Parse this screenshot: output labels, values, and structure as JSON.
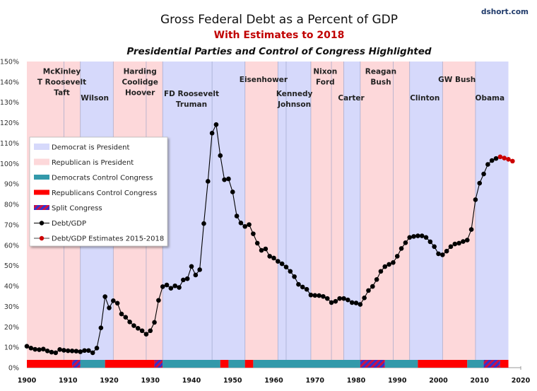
{
  "source_label": "dshort.com",
  "chart_data": {
    "type": "line",
    "title": "Gross Federal Debt as a Percent of GDP",
    "subtitle": "With Estimates to 2018",
    "subtitle2": "Presidential Parties and Control of Congress Highlighted",
    "xlabel": "",
    "ylabel": "",
    "xlim": [
      1900,
      2020
    ],
    "ylim": [
      0,
      150
    ],
    "x_ticks": [
      1900,
      1910,
      1920,
      1930,
      1940,
      1950,
      1960,
      1970,
      1980,
      1990,
      2000,
      2010,
      2020
    ],
    "y_ticks": [
      0,
      10,
      20,
      30,
      40,
      50,
      60,
      70,
      80,
      90,
      100,
      110,
      120,
      130,
      140,
      150
    ],
    "y_tick_suffix": "%",
    "grid": false,
    "legend_position": "left-middle",
    "colors": {
      "democrat_president": "#d6d9fb",
      "republican_president": "#fdd8da",
      "democrats_congress": "#3399aa",
      "republicans_congress": "#ff0000",
      "split_congress_a": "#3333cc",
      "split_congress_b": "#cc1144",
      "debt_line": "#000000",
      "estimate_marker": "#cc0000",
      "term_divider": "#9aa3c8"
    },
    "presidencies": [
      {
        "party": "R",
        "start": 1900,
        "end": 1913,
        "label": [
          "McKinley",
          "T Roosevelt",
          "Taft"
        ],
        "label_x": 1908.5,
        "label_y": 144
      },
      {
        "party": "D",
        "start": 1913,
        "end": 1921,
        "label": [
          "Wilson"
        ],
        "label_x": 1916.5,
        "label_y": 131
      },
      {
        "party": "R",
        "start": 1921,
        "end": 1933,
        "label": [
          "Harding",
          "Coolidge",
          "Hoover"
        ],
        "label_x": 1927.5,
        "label_y": 144
      },
      {
        "party": "D",
        "start": 1933,
        "end": 1953,
        "label": [
          "FD Roosevelt",
          "Truman"
        ],
        "label_x": 1940,
        "label_y": 133
      },
      {
        "party": "R",
        "start": 1953,
        "end": 1961,
        "label": [
          "Eisenhower"
        ],
        "label_x": 1957.5,
        "label_y": 140
      },
      {
        "party": "D",
        "start": 1961,
        "end": 1969,
        "label": [
          "Kennedy",
          "Johnson"
        ],
        "label_x": 1965,
        "label_y": 133
      },
      {
        "party": "R",
        "start": 1969,
        "end": 1977,
        "label": [
          "Nixon",
          "Ford"
        ],
        "label_x": 1972.5,
        "label_y": 144
      },
      {
        "party": "D",
        "start": 1977,
        "end": 1981,
        "label": [
          "Carter"
        ],
        "label_x": 1978.8,
        "label_y": 131
      },
      {
        "party": "R",
        "start": 1981,
        "end": 1993,
        "label": [
          "Reagan",
          "Bush"
        ],
        "label_x": 1986,
        "label_y": 144
      },
      {
        "party": "D",
        "start": 1993,
        "end": 2001,
        "label": [
          "Clinton"
        ],
        "label_x": 1996.7,
        "label_y": 131
      },
      {
        "party": "R",
        "start": 2001,
        "end": 2009,
        "label": [
          "GW Bush"
        ],
        "label_x": 2004.5,
        "label_y": 140
      },
      {
        "party": "D",
        "start": 2009,
        "end": 2017,
        "label": [
          "Obama"
        ],
        "label_x": 2012.5,
        "label_y": 131
      }
    ],
    "term_dividers": [
      1909,
      1913,
      1921,
      1929,
      1933,
      1945,
      1953,
      1961,
      1963,
      1969,
      1974,
      1977,
      1981,
      1989,
      1993,
      2001,
      2009
    ],
    "congress": [
      {
        "control": "R",
        "start": 1900,
        "end": 1911
      },
      {
        "control": "S",
        "start": 1911,
        "end": 1913
      },
      {
        "control": "D",
        "start": 1913,
        "end": 1919
      },
      {
        "control": "R",
        "start": 1919,
        "end": 1931
      },
      {
        "control": "S",
        "start": 1931,
        "end": 1933
      },
      {
        "control": "D",
        "start": 1933,
        "end": 1947
      },
      {
        "control": "R",
        "start": 1947,
        "end": 1949
      },
      {
        "control": "D",
        "start": 1949,
        "end": 1953
      },
      {
        "control": "R",
        "start": 1953,
        "end": 1955
      },
      {
        "control": "D",
        "start": 1955,
        "end": 1981
      },
      {
        "control": "S",
        "start": 1981,
        "end": 1987
      },
      {
        "control": "D",
        "start": 1987,
        "end": 1995
      },
      {
        "control": "R",
        "start": 1995,
        "end": 2007
      },
      {
        "control": "D",
        "start": 2007,
        "end": 2011
      },
      {
        "control": "S",
        "start": 2011,
        "end": 2015
      },
      {
        "control": "R",
        "start": 2015,
        "end": 2017
      }
    ],
    "series": [
      {
        "name": "Debt/GDP",
        "x": [
          1900,
          1901,
          1902,
          1903,
          1904,
          1905,
          1906,
          1907,
          1908,
          1909,
          1910,
          1911,
          1912,
          1913,
          1914,
          1915,
          1916,
          1917,
          1918,
          1919,
          1920,
          1921,
          1922,
          1923,
          1924,
          1925,
          1926,
          1927,
          1928,
          1929,
          1930,
          1931,
          1932,
          1933,
          1934,
          1935,
          1936,
          1937,
          1938,
          1939,
          1940,
          1941,
          1942,
          1943,
          1944,
          1945,
          1946,
          1947,
          1948,
          1949,
          1950,
          1951,
          1952,
          1953,
          1954,
          1955,
          1956,
          1957,
          1958,
          1959,
          1960,
          1961,
          1962,
          1963,
          1964,
          1965,
          1966,
          1967,
          1968,
          1969,
          1970,
          1971,
          1972,
          1973,
          1974,
          1975,
          1976,
          1977,
          1978,
          1979,
          1980,
          1981,
          1982,
          1983,
          1984,
          1985,
          1986,
          1987,
          1988,
          1989,
          1990,
          1991,
          1992,
          1993,
          1994,
          1995,
          1996,
          1997,
          1998,
          1999,
          2000,
          2001,
          2002,
          2003,
          2004,
          2005,
          2006,
          2007,
          2008,
          2009,
          2010,
          2011,
          2012,
          2013,
          2014
        ],
        "values": [
          10.5,
          9.6,
          9.0,
          8.8,
          9.1,
          8.2,
          7.6,
          7.3,
          8.9,
          8.5,
          8.3,
          8.2,
          8.1,
          7.8,
          8.4,
          8.4,
          7.3,
          9.6,
          19.5,
          34.8,
          29.3,
          32.8,
          31.6,
          26.3,
          24.7,
          22.4,
          20.6,
          19.3,
          18.1,
          16.4,
          18.1,
          22.2,
          33.0,
          39.7,
          40.5,
          38.9,
          40.1,
          39.3,
          43.0,
          43.6,
          49.6,
          45.4,
          48.0,
          70.6,
          91.3,
          114.9,
          119.1,
          103.9,
          92.1,
          92.5,
          86.1,
          74.3,
          70.9,
          69.2,
          70.1,
          65.6,
          61.0,
          57.5,
          58.2,
          54.6,
          53.7,
          52.1,
          50.9,
          49.3,
          47.2,
          44.6,
          40.8,
          39.5,
          38.4,
          35.6,
          35.4,
          35.3,
          34.9,
          33.9,
          31.9,
          32.5,
          33.9,
          33.9,
          33.2,
          31.9,
          31.7,
          31.0,
          34.2,
          37.8,
          39.8,
          43.2,
          47.2,
          49.5,
          50.6,
          51.5,
          54.6,
          58.4,
          61.2,
          63.8,
          64.3,
          64.6,
          64.6,
          63.8,
          61.7,
          59.3,
          55.8,
          55.3,
          57.1,
          59.3,
          60.6,
          61.0,
          61.8,
          62.5,
          67.7,
          82.3,
          90.4,
          94.9,
          99.6,
          101.5,
          102.5
        ],
        "color": "#000000"
      },
      {
        "name": "Debt/GDP Estimates 2015-2018",
        "x": [
          2015,
          2016,
          2017,
          2018
        ],
        "values": [
          103.3,
          102.7,
          102.1,
          101.2
        ],
        "color": "#cc0000"
      }
    ],
    "legend": [
      {
        "key": "democrat_president",
        "label": "Democrat is President",
        "kind": "fill-light-blue"
      },
      {
        "key": "republican_president",
        "label": "Republican is President",
        "kind": "fill-light-red"
      },
      {
        "key": "democrats_congress",
        "label": "Democrats Control Congress",
        "kind": "bar-teal"
      },
      {
        "key": "republicans_congress",
        "label": "Republicans Control Congress",
        "kind": "bar-red"
      },
      {
        "key": "split_congress",
        "label": "Split Congress",
        "kind": "bar-hatched"
      },
      {
        "key": "debt_line",
        "label": "Debt/GDP",
        "kind": "line-marker-black"
      },
      {
        "key": "estimate_marker",
        "label": "Debt/GDP Estimates 2015-2018",
        "kind": "line-marker-red"
      }
    ]
  }
}
